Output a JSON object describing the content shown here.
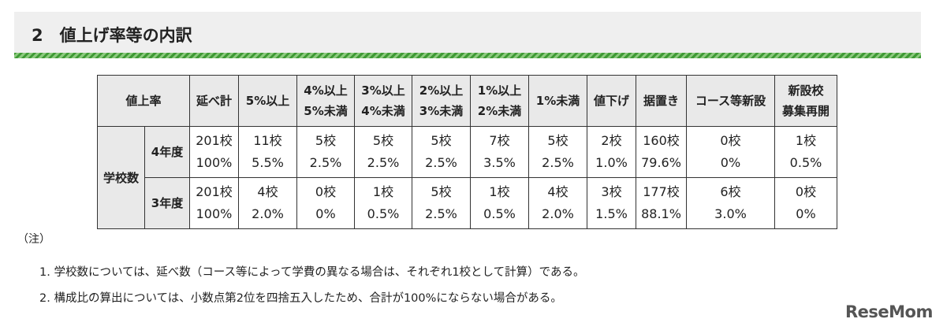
{
  "header": {
    "title": "2　値上げ率等の内訳"
  },
  "table": {
    "header_group": "値上率",
    "columns": [
      [
        "延べ計"
      ],
      [
        "5%以上"
      ],
      [
        "4%以上",
        "5%未満"
      ],
      [
        "3%以上",
        "4%未満"
      ],
      [
        "2%以上",
        "3%未満"
      ],
      [
        "1%以上",
        "2%未満"
      ],
      [
        "1%未満"
      ],
      [
        "値下げ"
      ],
      [
        "据置き"
      ],
      [
        "コース等新設"
      ],
      [
        "新設校",
        "募集再開"
      ]
    ],
    "row_group": "学校数",
    "rows": [
      {
        "label": "4年度",
        "cells": [
          [
            "201校",
            "100%"
          ],
          [
            "11校",
            "5.5%"
          ],
          [
            "5校",
            "2.5%"
          ],
          [
            "5校",
            "2.5%"
          ],
          [
            "5校",
            "2.5%"
          ],
          [
            "7校",
            "3.5%"
          ],
          [
            "5校",
            "2.5%"
          ],
          [
            "2校",
            "1.0%"
          ],
          [
            "160校",
            "79.6%"
          ],
          [
            "0校",
            "0%"
          ],
          [
            "1校",
            "0.5%"
          ]
        ]
      },
      {
        "label": "3年度",
        "cells": [
          [
            "201校",
            "100%"
          ],
          [
            "4校",
            "2.0%"
          ],
          [
            "0校",
            "0%"
          ],
          [
            "1校",
            "0.5%"
          ],
          [
            "5校",
            "2.5%"
          ],
          [
            "1校",
            "0.5%"
          ],
          [
            "4校",
            "2.0%"
          ],
          [
            "3校",
            "1.5%"
          ],
          [
            "177校",
            "88.1%"
          ],
          [
            "6校",
            "3.0%"
          ],
          [
            "0校",
            "0%"
          ]
        ]
      }
    ]
  },
  "notes": {
    "heading": "（注）",
    "items": [
      "1. 学校数については、延べ数（コース等によって学費の異なる場合は、それぞれ1校として計算）である。",
      "2. 構成比の算出については、小数点第2位を四捨五入したため、合計が100%にならない場合がある。"
    ]
  },
  "watermark": "ReseMom"
}
